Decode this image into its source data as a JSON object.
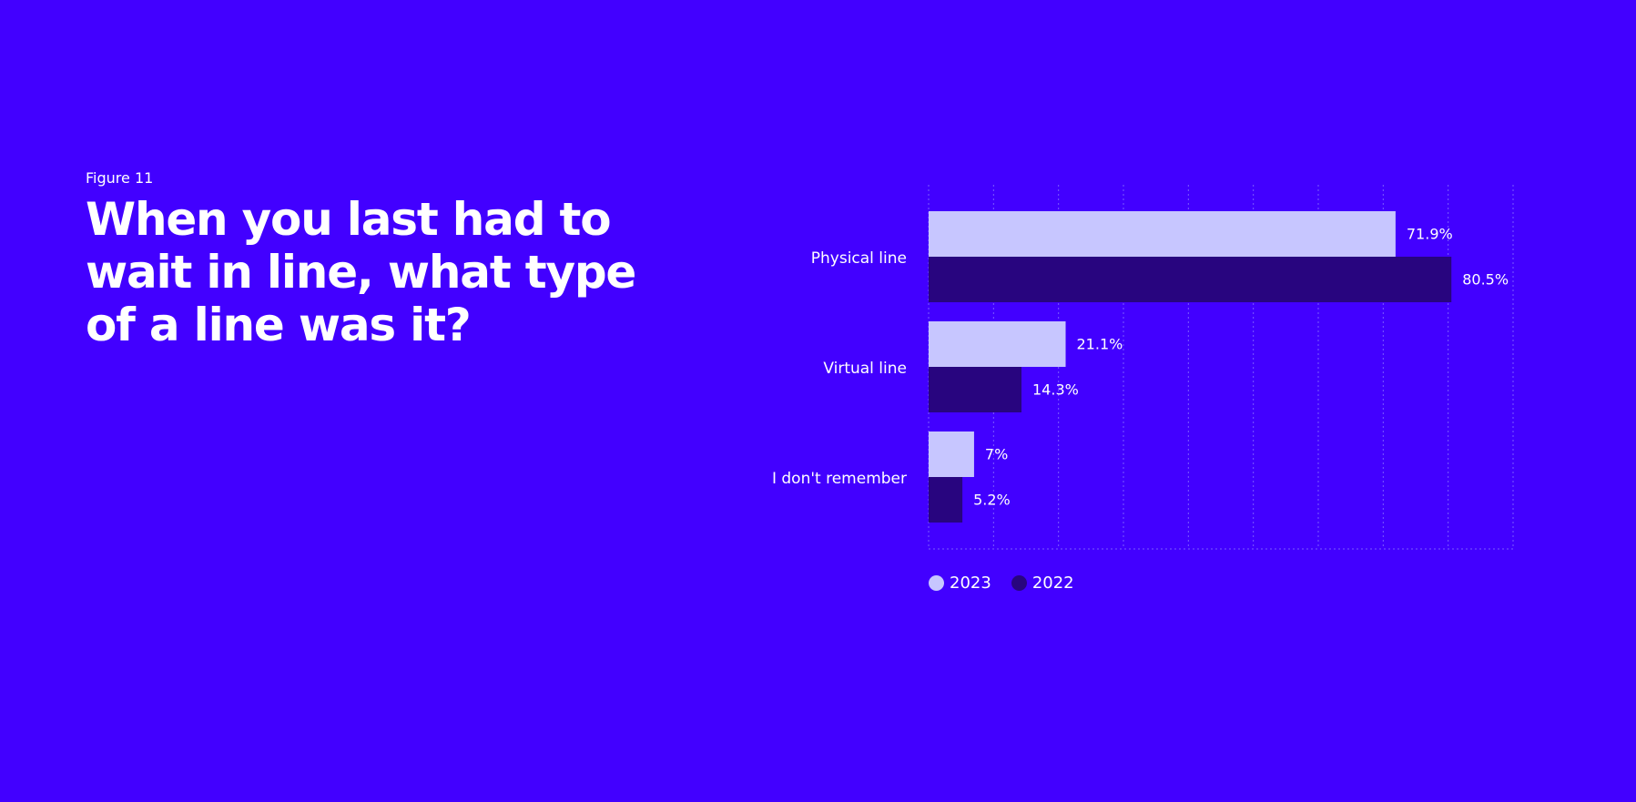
{
  "figure_label": "Figure 11",
  "title": "When you last had to wait in line, what type of a line was it?",
  "colors": {
    "background": "#4200FF",
    "series_2023": "#C7C6FF",
    "series_2022": "#28057F",
    "gridline": "#7B5CFF",
    "text": "#FFFFFF"
  },
  "chart_data": {
    "type": "bar",
    "orientation": "horizontal",
    "categories": [
      "Physical line",
      "Virtual line",
      "I don't remember"
    ],
    "series": [
      {
        "name": "2023",
        "values": [
          71.9,
          21.1,
          7
        ],
        "labels": [
          "71.9%",
          "21.1%",
          "7%"
        ]
      },
      {
        "name": "2022",
        "values": [
          80.5,
          14.3,
          5.2
        ],
        "labels": [
          "80.5%",
          "14.3%",
          "5.2%"
        ]
      }
    ],
    "xlim": [
      0,
      90
    ],
    "grid": true,
    "legend_position": "bottom-left"
  }
}
